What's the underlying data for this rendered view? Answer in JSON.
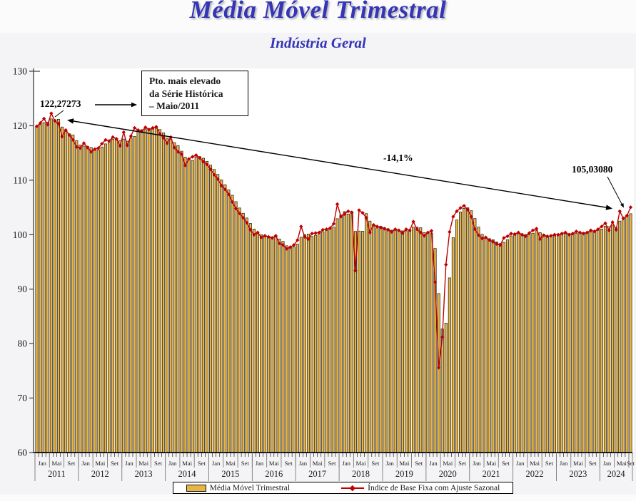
{
  "page": {
    "title": "Média Móvel Trimestral",
    "subtitle": "Indústria Geral"
  },
  "annotations": {
    "box_lines": [
      "Pto. mais elevado",
      "da Série Histórica",
      "– Maio/2011"
    ],
    "max_value_label": "122,27273",
    "decline_label": "-14,1%",
    "last_value_label": "105,03080"
  },
  "legend": {
    "bar_label": "Média Móvel Trimestral",
    "line_label": "Índice de Base Fixa com Ajuste Sazonal"
  },
  "colors": {
    "title_blue": "#3535b5",
    "bar_fill": "#e8b442",
    "bar_stroke": "#1a1a1a",
    "line_red": "#c00000",
    "axis_text": "#1a1a1a",
    "separator_gray": "#7a7a7a"
  },
  "chart_data": {
    "type": "bar+line",
    "title": "Média Móvel Trimestral — Indústria Geral",
    "x_start": "2011-01",
    "x_end": "2024-09",
    "years": [
      "2011",
      "2012",
      "2013",
      "2014",
      "2015",
      "2016",
      "2017",
      "2018",
      "2019",
      "2020",
      "2021",
      "2022",
      "2023",
      "2024"
    ],
    "month_labels": [
      "Jan",
      "Mai",
      "Set"
    ],
    "ylim": [
      60,
      130
    ],
    "ytick_step": 10,
    "grid": false,
    "legend_position": "bottom",
    "highlights": {
      "max": {
        "month": "2011-05",
        "value": 122.27273,
        "note": "Pto. mais elevado da Série Histórica – Maio/2011"
      },
      "last": {
        "month": "2024-09",
        "value": 105.0308
      },
      "change_pct": -14.1
    },
    "series": [
      {
        "name": "Índice de Base Fixa com Ajuste Sazonal",
        "type": "line",
        "color": "#c00000",
        "marker": "diamond",
        "values": [
          119.9,
          120.5,
          121.3,
          120.2,
          122.27273,
          120.9,
          120.4,
          118.0,
          119.2,
          118.3,
          117.4,
          116.1,
          115.9,
          116.8,
          116.0,
          115.2,
          115.7,
          115.9,
          116.7,
          117.4,
          117.2,
          117.9,
          117.6,
          116.3,
          118.8,
          116.4,
          118.1,
          119.6,
          119.2,
          119.0,
          119.7,
          119.3,
          119.6,
          119.8,
          118.5,
          117.8,
          116.8,
          117.9,
          116.0,
          115.2,
          114.8,
          112.7,
          113.9,
          114.3,
          114.6,
          114.1,
          113.4,
          112.9,
          112.0,
          111.0,
          110.2,
          109.0,
          108.3,
          107.4,
          106.0,
          104.8,
          103.9,
          103.1,
          102.2,
          100.9,
          100.0,
          100.4,
          99.5,
          99.8,
          99.6,
          99.4,
          99.8,
          98.4,
          98.1,
          97.4,
          97.7,
          98.1,
          99.0,
          101.5,
          99.6,
          99.2,
          100.2,
          100.3,
          100.4,
          100.9,
          101.0,
          101.2,
          102.0,
          105.6,
          103.3,
          103.8,
          104.3,
          104.1,
          93.4,
          104.5,
          104.0,
          103.1,
          100.4,
          101.8,
          101.5,
          101.3,
          101.1,
          100.9,
          100.5,
          101.0,
          100.8,
          100.3,
          101.0,
          100.8,
          102.4,
          101.0,
          100.4,
          99.8,
          100.4,
          100.7,
          91.3,
          75.58,
          81.2,
          94.5,
          100.5,
          103.3,
          104.3,
          104.9,
          105.3,
          104.6,
          103.3,
          101.0,
          99.9,
          99.3,
          99.5,
          99.0,
          98.7,
          98.3,
          98.1,
          99.4,
          99.7,
          100.2,
          100.1,
          100.4,
          100.0,
          99.7,
          100.3,
          100.8,
          101.1,
          99.2,
          99.9,
          99.7,
          99.8,
          100.0,
          100.0,
          100.2,
          100.4,
          100.0,
          100.2,
          100.6,
          100.4,
          100.2,
          100.4,
          100.8,
          100.6,
          101.0,
          101.5,
          102.1,
          100.8,
          102.3,
          100.9,
          104.3,
          103.0,
          103.5,
          105.0308
        ]
      },
      {
        "name": "Média Móvel Trimestral",
        "type": "bar",
        "color": "#e8b442",
        "derivation": "3-month trailing moving average of the line series"
      }
    ]
  }
}
